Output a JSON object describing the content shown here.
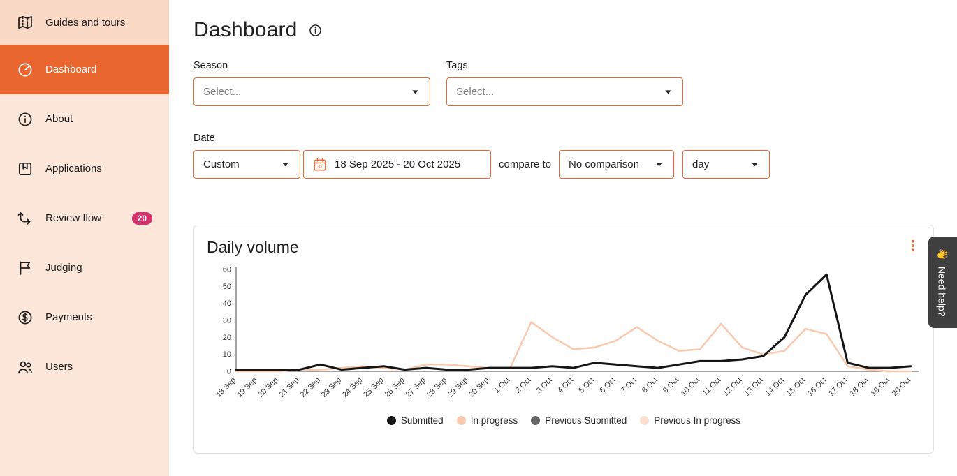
{
  "colors": {
    "accent": "#e9662f",
    "badge": "#d6336c",
    "sidebar_bg": "#fde6da",
    "help_bg": "#3f3f3f"
  },
  "sidebar": {
    "items": [
      {
        "label": "Guides and tours",
        "icon": "map-icon"
      },
      {
        "label": "Dashboard",
        "icon": "dashboard-icon",
        "active": true
      },
      {
        "label": "About",
        "icon": "info-icon"
      },
      {
        "label": "Applications",
        "icon": "bookmark-icon"
      },
      {
        "label": "Review flow",
        "icon": "flow-icon",
        "badge": "20"
      },
      {
        "label": "Judging",
        "icon": "flag-icon"
      },
      {
        "label": "Payments",
        "icon": "payments-icon"
      },
      {
        "label": "Users",
        "icon": "users-icon"
      }
    ]
  },
  "header": {
    "title": "Dashboard"
  },
  "filters": {
    "season_label": "Season",
    "season_placeholder": "Select...",
    "tags_label": "Tags",
    "tags_placeholder": "Select...",
    "date_label": "Date",
    "date_mode": "Custom",
    "date_range": "18 Sep 2025 - 20 Oct 2025",
    "compare_label": "compare to",
    "comparison_value": "No comparison",
    "granularity_value": "day"
  },
  "chart_card": {
    "title": "Daily volume"
  },
  "help_tab": {
    "emoji": "👋",
    "label": "Need help?"
  },
  "chart_data": {
    "type": "line",
    "title": "Daily volume",
    "xlabel": "",
    "ylabel": "",
    "ylim": [
      0,
      60
    ],
    "yticks": [
      0,
      10,
      20,
      30,
      40,
      50,
      60
    ],
    "grid": false,
    "legend_position": "bottom",
    "categories": [
      "18 Sep",
      "19 Sep",
      "20 Sep",
      "21 Sep",
      "22 Sep",
      "23 Sep",
      "24 Sep",
      "25 Sep",
      "26 Sep",
      "27 Sep",
      "28 Sep",
      "29 Sep",
      "30 Sep",
      "1 Oct",
      "2 Oct",
      "3 Oct",
      "4 Oct",
      "5 Oct",
      "6 Oct",
      "7 Oct",
      "8 Oct",
      "9 Oct",
      "10 Oct",
      "11 Oct",
      "12 Oct",
      "13 Oct",
      "14 Oct",
      "15 Oct",
      "16 Oct",
      "17 Oct",
      "18 Oct",
      "19 Oct",
      "20 Oct"
    ],
    "series": [
      {
        "name": "Submitted",
        "color": "#151515",
        "stroke_width": 3,
        "values": [
          1,
          1,
          1,
          1,
          4,
          1,
          2,
          3,
          1,
          2,
          1,
          1,
          2,
          2,
          2,
          3,
          2,
          5,
          4,
          3,
          2,
          4,
          6,
          6,
          7,
          9,
          20,
          45,
          57,
          5,
          2,
          2,
          3
        ]
      },
      {
        "name": "In progress",
        "color": "#f9c9ad",
        "stroke_width": 2.5,
        "values": [
          0,
          0,
          0,
          1,
          1,
          2,
          3,
          2,
          1,
          4,
          4,
          3,
          2,
          2,
          29,
          20,
          13,
          14,
          18,
          26,
          18,
          12,
          13,
          28,
          14,
          10,
          12,
          25,
          22,
          3,
          1,
          0,
          0
        ]
      },
      {
        "name": "Previous Submitted",
        "color": "#666666",
        "stroke_width": 2,
        "values": []
      },
      {
        "name": "Previous In progress",
        "color": "#fbdfd0",
        "stroke_width": 2,
        "values": []
      }
    ],
    "legend": [
      {
        "label": "Submitted",
        "color": "#151515"
      },
      {
        "label": "In progress",
        "color": "#f9c9ad"
      },
      {
        "label": "Previous Submitted",
        "color": "#666666"
      },
      {
        "label": "Previous In progress",
        "color": "#fbdfd0"
      }
    ]
  }
}
